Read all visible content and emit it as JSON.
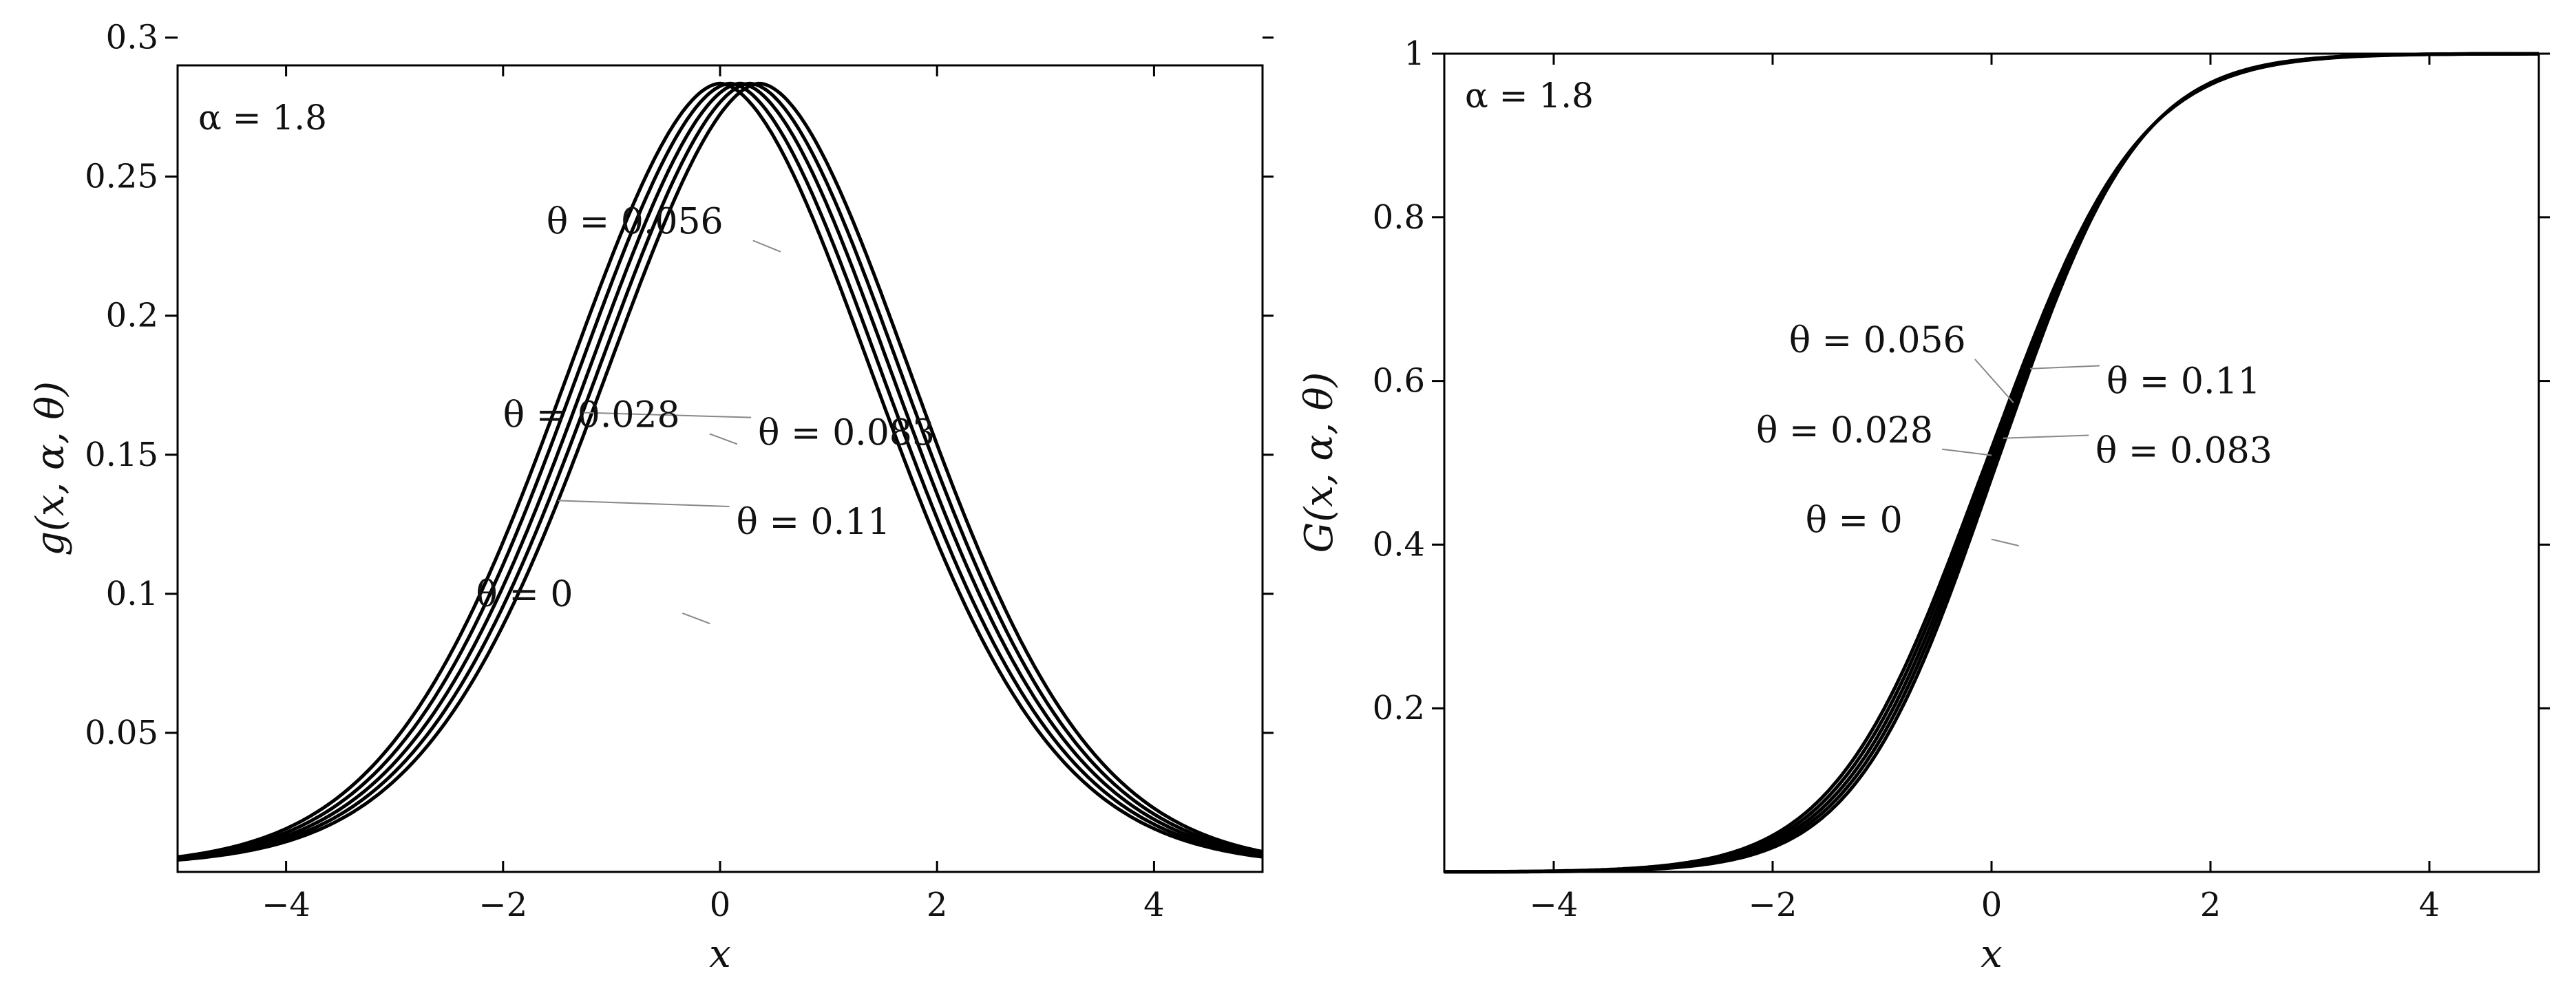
{
  "chart_data": [
    {
      "type": "line",
      "title": "",
      "xlabel": "x",
      "ylabel": "g(x, α, θ)",
      "xlim": [
        -5,
        5
      ],
      "ylim": [
        0,
        0.29
      ],
      "xticks": [
        -4,
        -2,
        0,
        2,
        4
      ],
      "xtick_labels": [
        "−4",
        "−2",
        "0",
        "2",
        "4"
      ],
      "yticks": [
        0.05,
        0.1,
        0.15,
        0.2,
        0.25,
        0.3
      ],
      "ytick_labels": [
        "0.05",
        "0.1",
        "0.15",
        "0.2",
        "0.25",
        "0.3"
      ],
      "grid": false,
      "annotation": "α = 1.8",
      "family": "density",
      "alpha": 1.8,
      "series": [
        {
          "name": "θ = 0",
          "theta": 0,
          "label_xy": [
            -2.25,
            0.0955
          ]
        },
        {
          "name": "θ = 0.028",
          "theta": 0.028,
          "label_xy": [
            -2.0,
            0.16
          ]
        },
        {
          "name": "θ = 0.056",
          "theta": 0.056,
          "label_xy": [
            -1.6,
            0.2295
          ]
        },
        {
          "name": "θ = 0.083",
          "theta": 0.083,
          "label_xy": [
            0.35,
            0.1535
          ]
        },
        {
          "name": "θ = 0.11",
          "theta": 0.11,
          "label_xy": [
            0.15,
            0.1215
          ]
        }
      ]
    },
    {
      "type": "line",
      "title": "",
      "xlabel": "x",
      "ylabel": "G(x, α, θ)",
      "xlim": [
        -5,
        5
      ],
      "ylim": [
        0,
        1
      ],
      "xticks": [
        -4,
        -2,
        0,
        2,
        4
      ],
      "xtick_labels": [
        "−4",
        "−2",
        "0",
        "2",
        "4"
      ],
      "yticks": [
        0.2,
        0.4,
        0.6,
        0.8,
        1
      ],
      "ytick_labels": [
        "0.2",
        "0.4",
        "0.6",
        "0.8",
        "1"
      ],
      "grid": false,
      "annotation": "α = 1.8",
      "family": "cdf",
      "alpha": 1.8,
      "series": [
        {
          "name": "θ = 0",
          "theta": 0,
          "label_xy": [
            -1.7,
            0.415
          ]
        },
        {
          "name": "θ = 0.028",
          "theta": 0.028,
          "label_xy": [
            -2.15,
            0.525
          ]
        },
        {
          "name": "θ = 0.056",
          "theta": 0.056,
          "label_xy": [
            -1.85,
            0.635
          ]
        },
        {
          "name": "θ = 0.083",
          "theta": 0.083,
          "label_xy": [
            0.95,
            0.5
          ]
        },
        {
          "name": "θ = 0.11",
          "theta": 0.11,
          "label_xy": [
            1.05,
            0.585
          ]
        }
      ]
    }
  ]
}
